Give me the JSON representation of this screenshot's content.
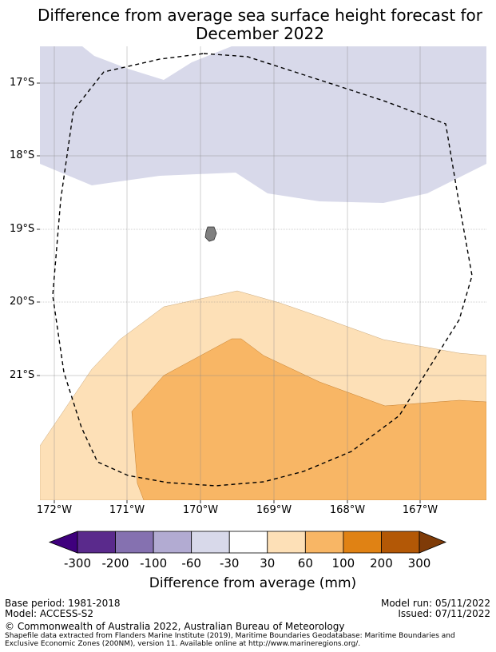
{
  "title": {
    "line1": "Difference from average sea surface height forecast for",
    "line2": "December 2022"
  },
  "map": {
    "latitude_labels": [
      "17°S",
      "18°S",
      "19°S",
      "20°S",
      "21°S"
    ],
    "longitude_labels": [
      "172°W",
      "171°W",
      "170°W",
      "169°W",
      "168°W",
      "167°W"
    ],
    "regions": [
      {
        "category": "-60 to -30",
        "color": "#d8d9ea"
      },
      {
        "category": "-30 to 30",
        "color": "#ffffff"
      },
      {
        "category": "30 to 60",
        "color": "#fde0b7"
      },
      {
        "category": "60 to 100",
        "color": "#f8b665"
      }
    ],
    "island_color": "#7f7f7f",
    "boundary": "Maritime Boundaries / Exclusive Economic Zone (dashed)"
  },
  "colorbar": {
    "labels": [
      "-300",
      "-200",
      "-100",
      "-60",
      "-30",
      "30",
      "60",
      "100",
      "200",
      "300"
    ],
    "colors": [
      "#3f007d",
      "#5a2a8c",
      "#8571b0",
      "#b2abd2",
      "#d8d9ea",
      "#ffffff",
      "#fde0b7",
      "#f8b665",
      "#e08214",
      "#b35806",
      "#7f3b08"
    ],
    "title": "Difference from average (mm)"
  },
  "footer": {
    "base_period": "Base period: 1981-2018",
    "model": "Model: ACCESS-S2",
    "model_run": "Model run: 05/11/2022",
    "issued": "Issued: 07/11/2022",
    "copyright": "© Commonwealth of Australia 2022, Australian Bureau of Meteorology",
    "source_line1": "Shapefile data extracted from Flanders Marine Institute (2019), Maritime Boundaries Geodatabase: Maritime Boundaries and",
    "source_line2": "Exclusive Economic Zones (200NM), version 11. Available online at http://www.marineregions.org/."
  }
}
